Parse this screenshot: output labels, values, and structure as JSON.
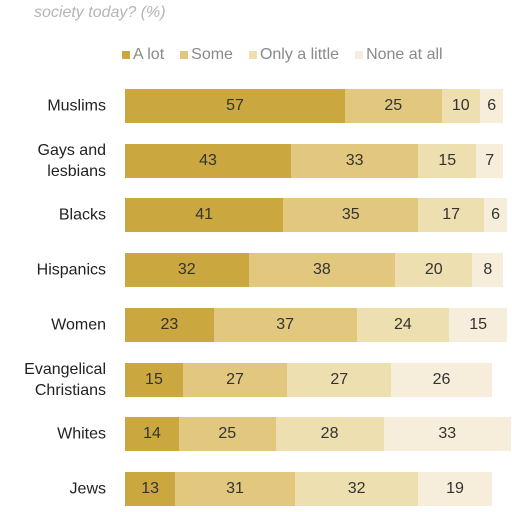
{
  "chart_data": {
    "type": "stacked-bar",
    "orientation": "horizontal",
    "title": "society today? (%)",
    "categories": [
      "Muslims",
      "Gays and lesbians",
      "Blacks",
      "Hispanics",
      "Women",
      "Evangelical Christians",
      "Whites",
      "Jews"
    ],
    "series": [
      {
        "name": "A lot",
        "color": "#caa73f",
        "values": [
          57,
          43,
          41,
          32,
          23,
          15,
          14,
          13
        ]
      },
      {
        "name": "Some",
        "color": "#e2c77f",
        "values": [
          25,
          33,
          35,
          38,
          37,
          27,
          25,
          31
        ]
      },
      {
        "name": "Only a little",
        "color": "#eedfb0",
        "values": [
          10,
          15,
          17,
          20,
          24,
          27,
          28,
          32
        ]
      },
      {
        "name": "None at all",
        "color": "#f6eedb",
        "values": [
          6,
          7,
          6,
          8,
          15,
          26,
          33,
          19
        ]
      }
    ]
  }
}
